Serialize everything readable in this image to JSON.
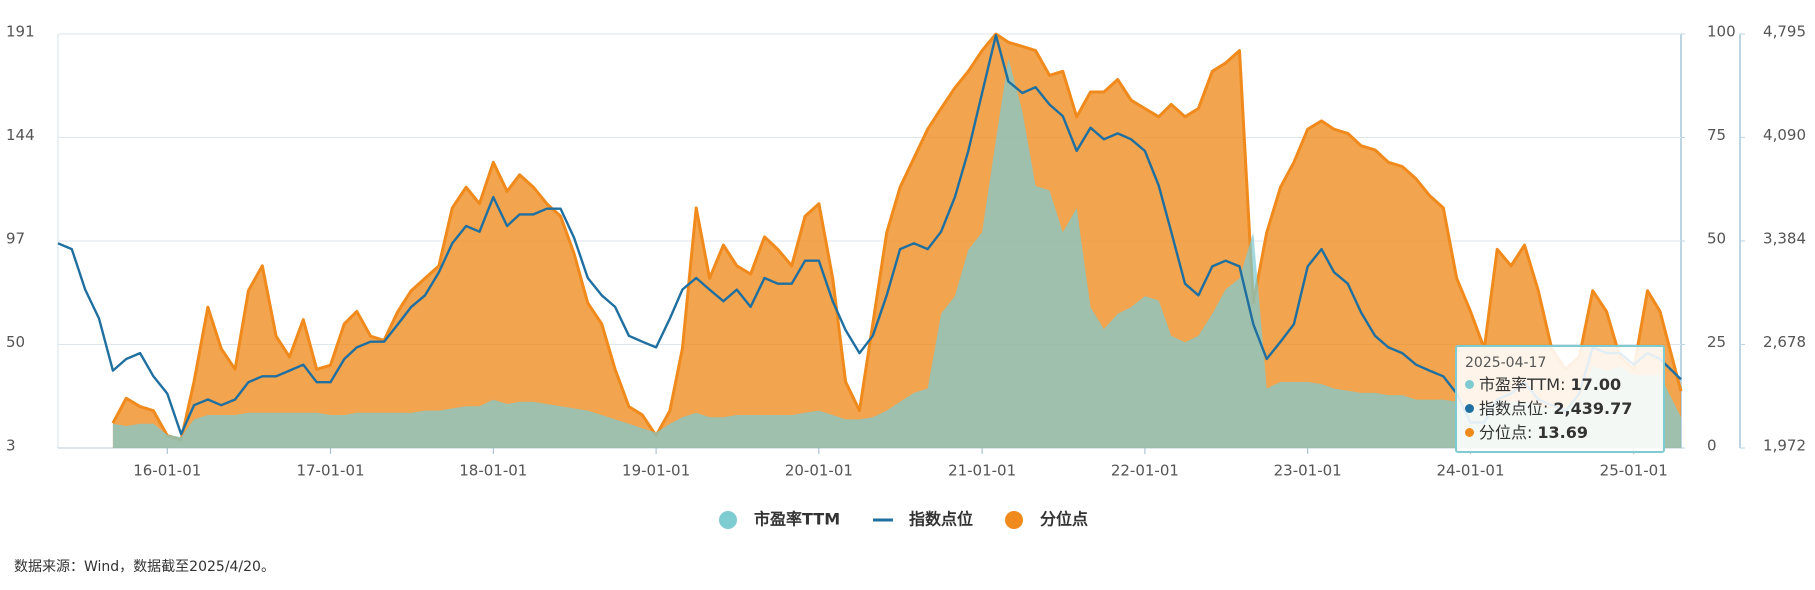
{
  "chart_data": {
    "type": "area",
    "x": [
      "15-05-01",
      "15-06-01",
      "15-07-01",
      "15-08-01",
      "15-09-01",
      "15-10-01",
      "15-11-01",
      "15-12-01",
      "16-01-01",
      "16-02-01",
      "16-03-01",
      "16-04-01",
      "16-05-01",
      "16-06-01",
      "16-07-01",
      "16-08-01",
      "16-09-01",
      "16-10-01",
      "16-11-01",
      "16-12-01",
      "17-01-01",
      "17-02-01",
      "17-03-01",
      "17-04-01",
      "17-05-01",
      "17-06-01",
      "17-07-01",
      "17-08-01",
      "17-09-01",
      "17-10-01",
      "17-11-01",
      "17-12-01",
      "18-01-01",
      "18-02-01",
      "18-03-01",
      "18-04-01",
      "18-05-01",
      "18-06-01",
      "18-07-01",
      "18-08-01",
      "18-09-01",
      "18-10-01",
      "18-11-01",
      "18-12-01",
      "19-01-01",
      "19-02-01",
      "19-03-01",
      "19-04-01",
      "19-05-01",
      "19-06-01",
      "19-07-01",
      "19-08-01",
      "19-09-01",
      "19-10-01",
      "19-11-01",
      "19-12-01",
      "20-01-01",
      "20-02-01",
      "20-03-01",
      "20-04-01",
      "20-05-01",
      "20-06-01",
      "20-07-01",
      "20-08-01",
      "20-09-01",
      "20-10-01",
      "20-11-01",
      "20-12-01",
      "21-01-01",
      "21-02-01",
      "21-03-01",
      "21-04-01",
      "21-05-01",
      "21-06-01",
      "21-07-01",
      "21-08-01",
      "21-09-01",
      "21-10-01",
      "21-11-01",
      "21-12-01",
      "22-01-01",
      "22-02-01",
      "22-03-01",
      "22-04-01",
      "22-05-01",
      "22-06-01",
      "22-07-01",
      "22-08-01",
      "22-09-01",
      "22-10-01",
      "22-11-01",
      "22-12-01",
      "23-01-01",
      "23-02-01",
      "23-03-01",
      "23-04-01",
      "23-05-01",
      "23-06-01",
      "23-07-01",
      "23-08-01",
      "23-09-01",
      "23-10-01",
      "23-11-01",
      "23-12-01",
      "24-01-01",
      "24-02-01",
      "24-03-01",
      "24-04-01",
      "24-05-01",
      "24-06-01",
      "24-07-01",
      "24-08-01",
      "24-09-01",
      "24-10-01",
      "24-11-01",
      "24-12-01",
      "25-01-01",
      "25-02-01",
      "25-03-01",
      "25-04-17"
    ],
    "xlim": [
      "15-05-01",
      "25-04-17"
    ],
    "xticks": [
      "16-01-01",
      "17-01-01",
      "18-01-01",
      "19-01-01",
      "20-01-01",
      "21-01-01",
      "22-01-01",
      "23-01-01",
      "24-01-01",
      "25-01-01"
    ],
    "ylim": [
      3,
      191
    ],
    "yticks": [
      3,
      50,
      97,
      144,
      191
    ],
    "y2lim": [
      0,
      100
    ],
    "y2ticks": [
      0,
      25,
      50,
      75,
      100
    ],
    "y3lim": [
      1972,
      4795
    ],
    "y3ticks": [
      {
        "value": 1972,
        "label": "1,972"
      },
      {
        "value": 2678,
        "label": "2,678"
      },
      {
        "value": 3384,
        "label": "3,384"
      },
      {
        "value": 4090,
        "label": "4,090"
      },
      {
        "value": 4795,
        "label": "4,795"
      }
    ],
    "grid": true,
    "series": [
      {
        "name": "市盈率TTM",
        "type": "area",
        "axis": "y",
        "color": "#7ecbd1",
        "values": [
          null,
          null,
          null,
          null,
          14,
          13,
          14,
          14,
          9,
          8,
          16,
          18,
          18,
          18,
          19,
          19,
          19,
          19,
          19,
          19,
          18,
          18,
          19,
          19,
          19,
          19,
          19,
          20,
          20,
          21,
          22,
          22,
          25,
          23,
          24,
          24,
          23,
          22,
          21,
          20,
          18,
          16,
          14,
          12,
          10,
          14,
          17,
          19,
          17,
          17,
          18,
          18,
          18,
          18,
          18,
          19,
          20,
          18,
          16,
          16,
          17,
          20,
          24,
          28,
          30,
          64,
          72,
          93,
          101,
          143,
          180,
          156,
          122,
          120,
          101,
          112,
          67,
          57,
          64,
          67,
          72,
          70,
          54,
          51,
          54,
          64,
          75,
          80,
          101,
          30,
          33,
          33,
          33,
          32,
          30,
          29,
          28,
          28,
          27,
          27,
          25,
          25,
          25,
          24,
          21,
          22,
          25,
          24,
          24,
          22,
          21,
          21,
          25,
          40,
          38,
          40,
          36,
          36,
          36,
          17
        ]
      },
      {
        "name": "指数点位",
        "type": "line",
        "axis": "y3",
        "color": "#1f6fa0",
        "values": [
          3368,
          3328,
          3052,
          2855,
          2500,
          2579,
          2619,
          2461,
          2343,
          2067,
          2264,
          2303,
          2264,
          2303,
          2421,
          2461,
          2461,
          2500,
          2540,
          2421,
          2421,
          2579,
          2658,
          2697,
          2697,
          2816,
          2934,
          3013,
          3171,
          3368,
          3486,
          3447,
          3683,
          3486,
          3565,
          3565,
          3604,
          3604,
          3407,
          3131,
          3013,
          2934,
          2737,
          2697,
          2658,
          2855,
          3052,
          3131,
          3052,
          2973,
          3052,
          2934,
          3131,
          3092,
          3092,
          3249,
          3249,
          2973,
          2776,
          2619,
          2737,
          3013,
          3328,
          3368,
          3328,
          3447,
          3683,
          3998,
          4393,
          4787,
          4471,
          4393,
          4432,
          4314,
          4235,
          3998,
          4156,
          4077,
          4117,
          4077,
          3998,
          3762,
          3447,
          3092,
          3013,
          3210,
          3249,
          3210,
          2816,
          2579,
          2697,
          2816,
          3210,
          3328,
          3171,
          3092,
          2895,
          2737,
          2658,
          2619,
          2540,
          2500,
          2461,
          2343,
          2145,
          2145,
          2303,
          2343,
          2421,
          2303,
          2264,
          2224,
          2343,
          2658,
          2619,
          2619,
          2540,
          2619,
          2579,
          2439.77
        ]
      },
      {
        "name": "分位点",
        "type": "area",
        "axis": "y2",
        "color": "#f08a1c",
        "values": [
          null,
          null,
          null,
          null,
          6,
          12,
          10,
          9,
          3,
          2,
          16,
          34,
          24,
          19,
          38,
          44,
          27,
          22,
          31,
          19,
          20,
          30,
          33,
          27,
          26,
          33,
          38,
          41,
          44,
          58,
          63,
          59,
          69,
          62,
          66,
          63,
          59,
          56,
          47,
          35,
          30,
          19,
          10,
          8,
          3,
          9,
          24,
          58,
          41,
          49,
          44,
          42,
          51,
          48,
          44,
          56,
          59,
          41,
          16,
          9,
          30,
          52,
          63,
          70,
          77,
          82,
          87,
          91,
          96,
          100,
          98,
          97,
          96,
          90,
          91,
          80,
          86,
          86,
          89,
          84,
          82,
          80,
          83,
          80,
          82,
          91,
          93,
          96,
          35,
          52,
          63,
          69,
          77,
          79,
          77,
          76,
          73,
          72,
          69,
          68,
          65,
          61,
          58,
          41,
          33,
          24,
          48,
          44,
          49,
          38,
          24,
          19,
          22,
          38,
          33,
          22,
          19,
          38,
          33,
          13.69
        ]
      }
    ],
    "tooltip": {
      "date": "2025-04-17",
      "separator": ":",
      "values": [
        "17.00",
        "2,439.77",
        "13.69"
      ]
    },
    "source": "数据来源：Wind，数据截至2025/4/20。"
  }
}
